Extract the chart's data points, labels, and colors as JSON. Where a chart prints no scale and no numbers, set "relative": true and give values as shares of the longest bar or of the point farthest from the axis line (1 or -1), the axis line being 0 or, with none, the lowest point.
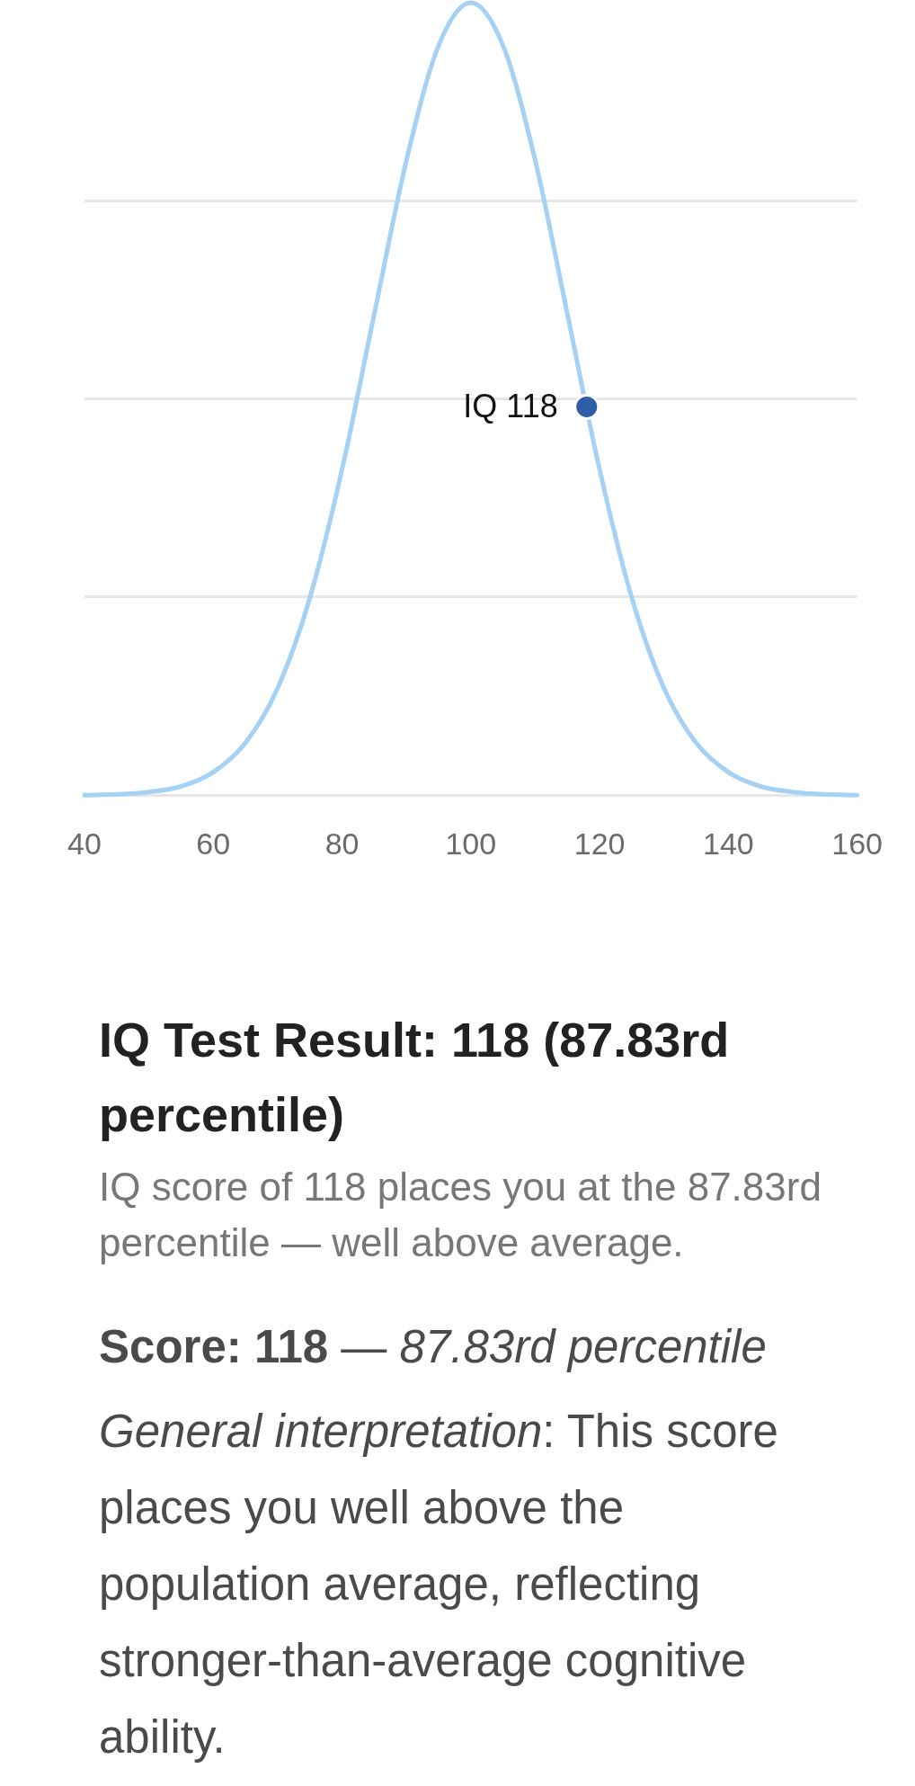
{
  "chart_data": {
    "type": "line",
    "title": "IQ Test Result: 118 (87.83rd percentile)",
    "subtitle": "IQ score of 118 places you at the 87.83rd percentile — well above average.",
    "x": [
      40,
      45,
      50,
      55,
      60,
      65,
      70,
      75,
      80,
      85,
      90,
      95,
      100,
      105,
      110,
      115,
      120,
      125,
      130,
      135,
      140,
      145,
      150,
      155,
      160
    ],
    "series": [
      {
        "color": "#a5d2f4",
        "values": [
          0,
          0.001,
          0.004,
          0.011,
          0.029,
          0.066,
          0.135,
          0.249,
          0.411,
          0.607,
          0.801,
          0.946,
          1,
          0.946,
          0.801,
          0.607,
          0.411,
          0.249,
          0.135,
          0.066,
          0.029,
          0.011,
          0.004,
          0.001,
          0
        ]
      },
      {
        "type": "scatter",
        "x": [
          118
        ],
        "color": "#2f5ea8",
        "values": [
          0.49
        ]
      }
    ],
    "relative": true,
    "xlim": [
      40,
      160
    ],
    "xticks": [
      40,
      60,
      80,
      100,
      120,
      140,
      160
    ],
    "grid": "y",
    "tick_labels": "x",
    "annotations": [
      {
        "text": "IQ 118",
        "x": 118,
        "y": 0.49
      },
      "Score: 118",
      "—",
      "87.83rd percentile",
      "General interpretation",
      ": This score places you well above the population average, reflecting stronger-than-average cognitive ability."
    ]
  }
}
